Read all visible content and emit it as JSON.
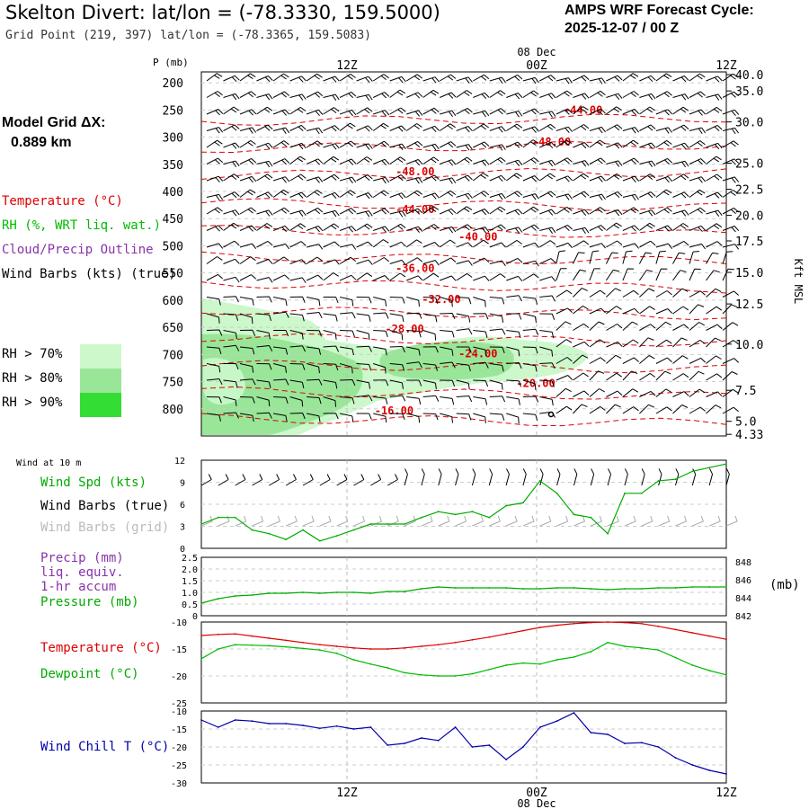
{
  "header": {
    "title": "Skelton Divert:  lat/lon = (-78.3330, 159.5000)",
    "subtitle": "Grid Point (219, 397) lat/lon = (-78.3365, 159.5083)",
    "cycle_line1": "AMPS WRF Forecast Cycle:",
    "cycle_line2": "2025-12-07 / 00  Z",
    "grid_label": "Model Grid ΔX:",
    "grid_value": "0.889 km"
  },
  "legend_upper": {
    "temperature": "Temperature (°C)",
    "rh": "RH (%, WRT liq. wat.)",
    "cloud": "Cloud/Precip Outline",
    "barbs": "Wind Barbs (kts) (true)",
    "rh70": "RH > 70%",
    "rh80": "RH > 80%",
    "rh90": "RH > 90%"
  },
  "legend_wind": {
    "header": "Wind at 10 m",
    "speed": "Wind Spd (kts)",
    "barbs_true": "Wind Barbs (true)",
    "barbs_grid": "Wind Barbs (grid)"
  },
  "legend_precip": {
    "line1": "Precip (mm)",
    "line2": "liq. equiv.",
    "line3": "1-hr accum",
    "line4": "Pressure (mb)",
    "units": "(mb)"
  },
  "legend_temp": {
    "temp": "Temperature (°C)",
    "dew": "Dewpoint (°C)"
  },
  "legend_chill": {
    "label": "Wind Chill T (°C)"
  },
  "colors": {
    "temp": "#dd0000",
    "rh": "#00bb00",
    "cloud": "#8833aa",
    "chill": "#0000aa",
    "rh70": "#ccf8cc",
    "rh80": "#99e699",
    "rh90": "#33dd33",
    "grid_barb": "#aaaaaa"
  },
  "chart_data": [
    {
      "type": "contour",
      "name": "cross-section",
      "x_ticks_top": [
        "12Z",
        "00Z",
        "12Z"
      ],
      "date_label": "08 Dec",
      "y_label": "P (mb)",
      "y_ticks": [
        200,
        250,
        300,
        350,
        400,
        450,
        500,
        550,
        600,
        650,
        700,
        750,
        800
      ],
      "ylim": [
        180,
        850
      ],
      "right_axis_label": "Kft MSL",
      "right_ticks": [
        {
          "p": 185,
          "label": "40.0"
        },
        {
          "p": 215,
          "label": "35.0"
        },
        {
          "p": 272,
          "label": "30.0"
        },
        {
          "p": 348,
          "label": "25.0"
        },
        {
          "p": 396,
          "label": "22.5"
        },
        {
          "p": 444,
          "label": "20.0"
        },
        {
          "p": 491,
          "label": "17.5"
        },
        {
          "p": 549,
          "label": "15.0"
        },
        {
          "p": 607,
          "label": "12.5"
        },
        {
          "p": 681,
          "label": "10.0"
        },
        {
          "p": 766,
          "label": "7.5"
        },
        {
          "p": 823,
          "label": "5.0"
        },
        {
          "p": 847,
          "label": "4.33"
        }
      ],
      "temperature_labels": [
        {
          "label": "-44.00",
          "t": 0.69,
          "p": 257
        },
        {
          "label": "-48.00",
          "t": 0.63,
          "p": 316
        },
        {
          "label": "-48.00",
          "t": 0.37,
          "p": 370
        },
        {
          "label": "-44.00",
          "t": 0.37,
          "p": 440
        },
        {
          "label": "-40.00",
          "t": 0.49,
          "p": 490
        },
        {
          "label": "-36.00",
          "t": 0.37,
          "p": 548
        },
        {
          "label": "-32.00",
          "t": 0.42,
          "p": 605
        },
        {
          "label": "-28.00",
          "t": 0.35,
          "p": 660
        },
        {
          "label": "-24.00",
          "t": 0.49,
          "p": 705
        },
        {
          "label": "-20.00",
          "t": 0.6,
          "p": 760
        },
        {
          "label": "-16.00",
          "t": 0.33,
          "p": 810
        }
      ]
    },
    {
      "type": "line",
      "name": "wind-speed",
      "ylim": [
        0,
        12
      ],
      "y_ticks": [
        0,
        3,
        6,
        9,
        12
      ],
      "series": [
        {
          "name": "Wind Spd (kts)",
          "values": [
            3.3,
            4.2,
            4.2,
            2.5,
            2.0,
            1.2,
            2.5,
            1.0,
            1.7,
            2.5,
            3.3,
            3.3,
            3.3,
            4.2,
            5.0,
            4.6,
            5.0,
            4.2,
            5.8,
            6.2,
            9.2,
            7.5,
            4.6,
            4.2,
            2.0,
            7.5,
            7.5,
            9.2,
            9.4,
            10.5,
            11.0,
            11.5
          ]
        }
      ]
    },
    {
      "type": "line",
      "name": "pressure",
      "y_ticks_left": [
        "0",
        "0.5",
        "1.0",
        "1.5",
        "2.0",
        "2.5"
      ],
      "y_ticks_right": [
        "842",
        "844",
        "846",
        "848"
      ],
      "ylim": [
        842,
        848.5
      ],
      "series": [
        {
          "name": "Pressure (mb)",
          "values": [
            843.4,
            843.9,
            844.2,
            844.3,
            844.5,
            844.5,
            844.6,
            844.5,
            844.6,
            844.6,
            844.5,
            844.7,
            844.7,
            845.0,
            845.2,
            845.1,
            845.1,
            845.1,
            845.1,
            845.0,
            845.0,
            845.1,
            845.1,
            845.0,
            844.9,
            845.0,
            845.0,
            845.1,
            845.1,
            845.2,
            845.2,
            845.2
          ]
        }
      ]
    },
    {
      "type": "line",
      "name": "temperature-dewpoint",
      "ylim": [
        -25,
        -10
      ],
      "y_ticks": [
        -25,
        -20,
        -15,
        -10
      ],
      "series": [
        {
          "name": "Temperature (°C)",
          "values": [
            -12.5,
            -12.3,
            -12.2,
            -12.6,
            -13.0,
            -13.4,
            -13.8,
            -14.2,
            -14.5,
            -14.8,
            -15.0,
            -15.0,
            -14.8,
            -14.5,
            -14.2,
            -13.8,
            -13.3,
            -12.8,
            -12.2,
            -11.6,
            -11.0,
            -10.6,
            -10.3,
            -10.1,
            -10.0,
            -10.1,
            -10.3,
            -10.8,
            -11.4,
            -12.0,
            -12.6,
            -13.2
          ]
        },
        {
          "name": "Dewpoint (°C)",
          "values": [
            -16.8,
            -15.0,
            -14.2,
            -14.3,
            -14.4,
            -14.6,
            -14.9,
            -15.2,
            -15.8,
            -17.0,
            -17.8,
            -18.5,
            -19.4,
            -19.8,
            -20.0,
            -20.0,
            -19.6,
            -18.8,
            -18.0,
            -17.6,
            -17.8,
            -17.0,
            -16.5,
            -15.5,
            -13.8,
            -14.5,
            -14.8,
            -15.2,
            -16.6,
            -18.0,
            -19.0,
            -19.8
          ]
        }
      ]
    },
    {
      "type": "line",
      "name": "wind-chill",
      "ylim": [
        -30,
        -10
      ],
      "y_ticks": [
        -30,
        -25,
        -20,
        -15,
        -10
      ],
      "x_ticks": [
        "12Z",
        "00Z",
        "12Z"
      ],
      "date_label": "08 Dec",
      "series": [
        {
          "name": "Wind Chill T (°C)",
          "values": [
            -12.5,
            -14.5,
            -12.5,
            -12.8,
            -13.5,
            -13.5,
            -14.0,
            -14.8,
            -14.2,
            -15.0,
            -14.5,
            -19.5,
            -19.0,
            -17.5,
            -18.2,
            -14.5,
            -20.0,
            -19.5,
            -23.5,
            -20.0,
            -14.5,
            -12.8,
            -10.5,
            -16.0,
            -16.5,
            -19.0,
            -18.8,
            -20.0,
            -23.0,
            -25.0,
            -26.5,
            -27.5
          ]
        }
      ]
    }
  ]
}
